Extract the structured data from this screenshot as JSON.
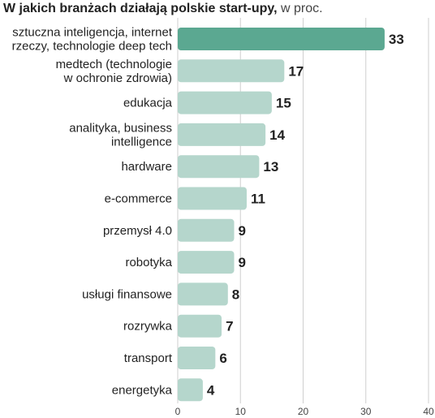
{
  "chart_data": {
    "type": "bar",
    "orientation": "horizontal",
    "title": "W jakich branżach działają polskie start-upy,",
    "subtitle": "w proc.",
    "categories": [
      "sztuczna inteligencja, internet\nrzeczy, technologie deep tech",
      "medtech (technologie\nw ochronie zdrowia)",
      "edukacja",
      "analityka, business\nintelligence",
      "hardware",
      "e-commerce",
      "przemysł 4.0",
      "robotyka",
      "usługi finansowe",
      "rozrywka",
      "transport",
      "energetyka"
    ],
    "values": [
      33,
      17,
      15,
      14,
      13,
      11,
      9,
      9,
      8,
      7,
      6,
      4
    ],
    "xlim": [
      0,
      40
    ],
    "xticks": [
      0,
      10,
      20,
      30,
      40
    ],
    "grid": true,
    "colors": {
      "highlight": "#5ba891",
      "bar": "#b5d6cc",
      "grid": "#cfcfcf"
    }
  }
}
